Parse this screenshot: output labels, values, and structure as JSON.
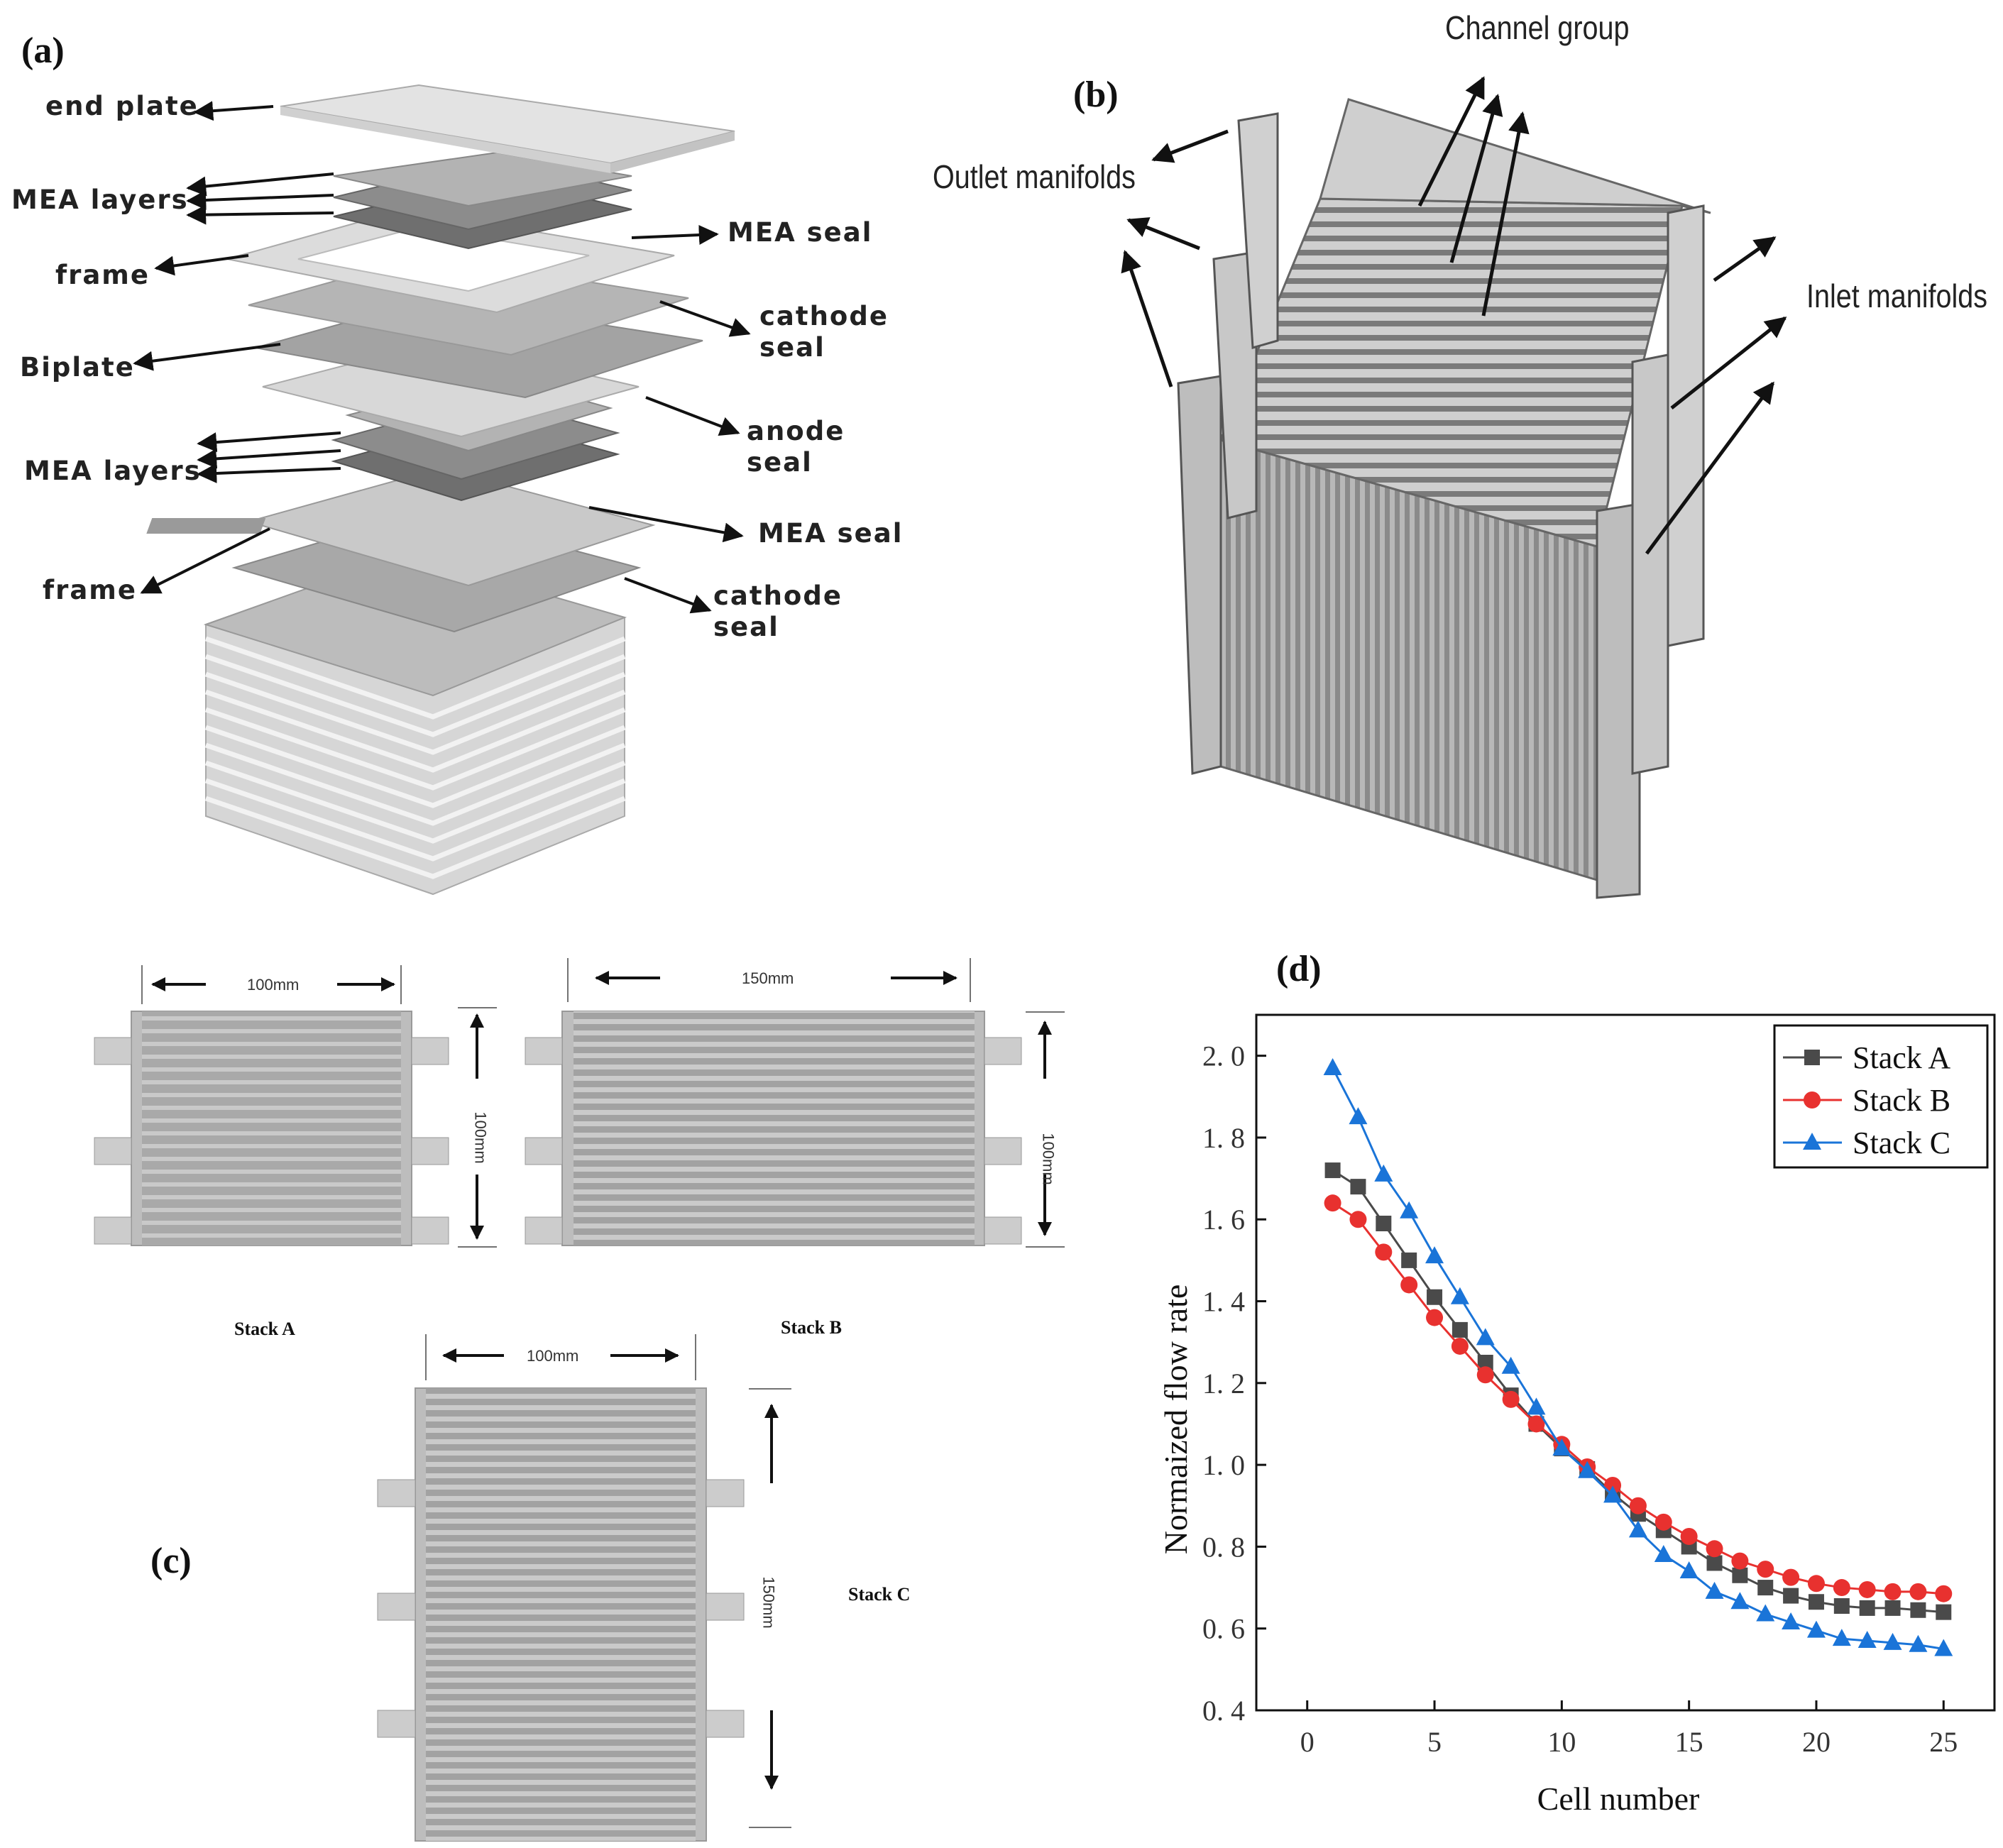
{
  "panels": {
    "a": {
      "label": "(a)",
      "labels": {
        "end_plate": "end plate",
        "mea_layers_top": "MEA layers",
        "mea_seal_top": "MEA seal",
        "frame_top": "frame",
        "cathode_seal_top": "cathode\nseal",
        "biplate": "Biplate",
        "anode_seal": "anode\nseal",
        "mea_layers_bottom": "MEA layers",
        "mea_seal_bottom": "MEA seal",
        "frame_bottom": "frame",
        "cathode_seal_bottom": "cathode\nseal"
      }
    },
    "b": {
      "label": "(b)",
      "labels": {
        "channel_group": "Channel group",
        "outlet_manifolds": "Outlet manifolds",
        "inlet_manifolds": "Inlet manifolds"
      }
    },
    "c": {
      "label": "(c)",
      "stacks": [
        {
          "name": "Stack A",
          "width_label": "100mm",
          "height_label": "100mm"
        },
        {
          "name": "Stack B",
          "width_label": "150mm",
          "height_label": "100mm"
        },
        {
          "name": "Stack C",
          "width_label": "100mm",
          "height_label": "150mm"
        }
      ]
    },
    "d": {
      "label": "(d)"
    }
  },
  "chart_data": {
    "type": "line",
    "xlabel": "Cell number",
    "ylabel": "Normaized flow rate",
    "xlim": [
      -2,
      27
    ],
    "ylim": [
      0.4,
      2.1
    ],
    "xticks": [
      0,
      5,
      10,
      15,
      20,
      25
    ],
    "yticks": [
      0.4,
      0.6,
      0.8,
      1.0,
      1.2,
      1.4,
      1.6,
      1.8,
      2.0
    ],
    "xtick_labels": [
      "0",
      "5",
      "10",
      "15",
      "20",
      "25"
    ],
    "ytick_labels": [
      "0. 4",
      "0. 6",
      "0. 8",
      "1. 0",
      "1. 2",
      "1. 4",
      "1. 6",
      "1. 8",
      "2. 0"
    ],
    "legend_position": "top-right",
    "grid": false,
    "x": [
      1,
      2,
      3,
      4,
      5,
      6,
      7,
      8,
      9,
      10,
      11,
      12,
      13,
      14,
      15,
      16,
      17,
      18,
      19,
      20,
      21,
      22,
      23,
      24,
      25
    ],
    "series": [
      {
        "name": "Stack A",
        "color": "#4a4a4a",
        "marker": "square",
        "values": [
          1.72,
          1.68,
          1.59,
          1.5,
          1.41,
          1.33,
          1.25,
          1.17,
          1.1,
          1.04,
          0.99,
          0.93,
          0.88,
          0.84,
          0.8,
          0.76,
          0.73,
          0.7,
          0.68,
          0.665,
          0.655,
          0.65,
          0.65,
          0.645,
          0.64
        ]
      },
      {
        "name": "Stack B",
        "color": "#e8312f",
        "marker": "circle",
        "values": [
          1.64,
          1.6,
          1.52,
          1.44,
          1.36,
          1.29,
          1.22,
          1.16,
          1.1,
          1.05,
          0.995,
          0.95,
          0.9,
          0.86,
          0.825,
          0.795,
          0.765,
          0.745,
          0.725,
          0.71,
          0.7,
          0.695,
          0.69,
          0.69,
          0.685
        ]
      },
      {
        "name": "Stack C",
        "color": "#1a74d8",
        "marker": "triangle",
        "values": [
          1.97,
          1.85,
          1.71,
          1.62,
          1.51,
          1.41,
          1.31,
          1.24,
          1.14,
          1.04,
          0.985,
          0.925,
          0.84,
          0.78,
          0.74,
          0.69,
          0.665,
          0.635,
          0.615,
          0.595,
          0.575,
          0.57,
          0.565,
          0.56,
          0.55
        ]
      }
    ]
  }
}
